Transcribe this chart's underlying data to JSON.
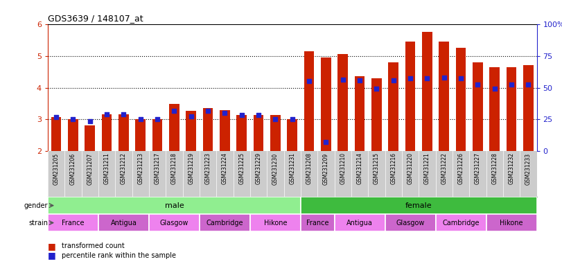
{
  "title": "GDS3639 / 148107_at",
  "samples": [
    "GSM231205",
    "GSM231206",
    "GSM231207",
    "GSM231211",
    "GSM231212",
    "GSM231213",
    "GSM231217",
    "GSM231218",
    "GSM231219",
    "GSM231223",
    "GSM231224",
    "GSM231225",
    "GSM231229",
    "GSM231230",
    "GSM231231",
    "GSM231208",
    "GSM231209",
    "GSM231210",
    "GSM231214",
    "GSM231215",
    "GSM231216",
    "GSM231220",
    "GSM231221",
    "GSM231222",
    "GSM231226",
    "GSM231227",
    "GSM231228",
    "GSM231232",
    "GSM231233"
  ],
  "red_values": [
    3.08,
    3.02,
    2.82,
    3.17,
    3.17,
    3.02,
    3.02,
    3.5,
    3.27,
    3.35,
    3.3,
    3.15,
    3.15,
    3.15,
    3.02,
    5.15,
    4.95,
    5.05,
    4.35,
    4.3,
    4.8,
    5.45,
    5.75,
    5.45,
    5.25,
    4.8,
    4.65,
    4.65,
    4.7
  ],
  "blue_values": [
    3.08,
    3.02,
    2.95,
    3.17,
    3.17,
    3.02,
    3.02,
    3.28,
    3.1,
    3.27,
    3.2,
    3.15,
    3.15,
    3.02,
    3.02,
    4.2,
    2.3,
    4.25,
    4.22,
    3.97,
    4.22,
    4.3,
    4.3,
    4.32,
    4.3,
    4.1,
    3.97,
    4.1,
    4.1
  ],
  "ylim_left": [
    2,
    6
  ],
  "ylim_right": [
    0,
    100
  ],
  "yticks_left": [
    2,
    3,
    4,
    5,
    6
  ],
  "yticks_right": [
    0,
    25,
    50,
    75,
    100
  ],
  "gender_groups": [
    {
      "label": "male",
      "start": 0,
      "end": 15,
      "color": "#90EE90"
    },
    {
      "label": "female",
      "start": 15,
      "end": 29,
      "color": "#3EBB3E"
    }
  ],
  "strain_groups": [
    {
      "label": "France",
      "start": 0,
      "end": 3,
      "color": "#EE82EE"
    },
    {
      "label": "Antigua",
      "start": 3,
      "end": 6,
      "color": "#CC66CC"
    },
    {
      "label": "Glasgow",
      "start": 6,
      "end": 9,
      "color": "#EE82EE"
    },
    {
      "label": "Cambridge",
      "start": 9,
      "end": 12,
      "color": "#CC66CC"
    },
    {
      "label": "Hikone",
      "start": 12,
      "end": 15,
      "color": "#EE82EE"
    },
    {
      "label": "France",
      "start": 15,
      "end": 17,
      "color": "#CC66CC"
    },
    {
      "label": "Antigua",
      "start": 17,
      "end": 20,
      "color": "#EE82EE"
    },
    {
      "label": "Glasgow",
      "start": 20,
      "end": 23,
      "color": "#CC66CC"
    },
    {
      "label": "Cambridge",
      "start": 23,
      "end": 26,
      "color": "#EE82EE"
    },
    {
      "label": "Hikone",
      "start": 26,
      "end": 29,
      "color": "#CC66CC"
    }
  ],
  "bar_color": "#CC2200",
  "dot_color": "#2222CC",
  "bg_color": "#FFFFFF",
  "axis_color_left": "#CC2200",
  "axis_color_right": "#2222CC",
  "grid_color": "black",
  "tick_bg_color": "#CCCCCC"
}
